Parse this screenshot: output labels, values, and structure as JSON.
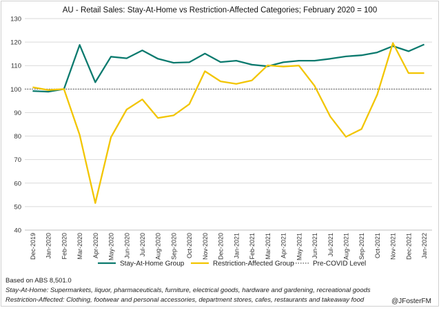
{
  "chart_data": {
    "type": "line",
    "title": "AU - Retail Sales: Stay-At-Home vs Restriction-Affected Categories; February 2020 = 100",
    "categories": [
      "Dec-2019",
      "Jan-2020",
      "Feb-2020",
      "Mar-2020",
      "Apr-2020",
      "May-2020",
      "Jun-2020",
      "Jul-2020",
      "Aug-2020",
      "Sep-2020",
      "Oct-2020",
      "Nov-2020",
      "Dec-2020",
      "Jan-2021",
      "Feb-2021",
      "Mar-2021",
      "Apr-2021",
      "May-2021",
      "Jun-2021",
      "Jul-2021",
      "Aug-2021",
      "Sep-2021",
      "Oct-2021",
      "Nov-2021",
      "Dec-2021",
      "Jan-2022"
    ],
    "series": [
      {
        "name": "Stay-At-Home Group",
        "color": "#0b7a6e",
        "values": [
          99.2,
          98.9,
          100.0,
          118.8,
          102.9,
          113.8,
          113.1,
          116.5,
          112.9,
          111.2,
          111.4,
          115.1,
          111.5,
          112.1,
          110.4,
          109.7,
          111.4,
          112.1,
          112.1,
          112.9,
          113.9,
          114.4,
          115.6,
          118.3,
          116.1,
          119.0
        ]
      },
      {
        "name": "Restriction-Affected Group",
        "color": "#f2c500",
        "values": [
          100.8,
          99.6,
          100.0,
          80.5,
          51.5,
          79.5,
          91.3,
          95.6,
          87.7,
          88.8,
          93.6,
          107.6,
          103.3,
          102.2,
          103.7,
          110.1,
          109.6,
          110.0,
          101.4,
          88.3,
          79.7,
          83.0,
          97.6,
          119.6,
          106.8,
          106.8
        ]
      }
    ],
    "reference": {
      "name": "Pre-COVID Level",
      "value": 100,
      "style": "dotted",
      "color": "#555555"
    },
    "ylim": [
      40,
      130
    ],
    "yticks": [
      40,
      50,
      60,
      70,
      80,
      90,
      100,
      110,
      120,
      130
    ],
    "xlabel": "",
    "ylabel": "",
    "grid": true,
    "legend": "bottom"
  },
  "footer": {
    "source": "Based on ABS 8,501.0",
    "stay_label": "Stay-At-Home:",
    "stay_desc": " Supermarkets, liquor, pharmaceuticals, furniture, electrical goods, hardware and gardening, recreational goods",
    "restr_label": "Restriction-Affected:",
    "restr_desc": " Clothing, footwear and personal accessories, department stores, cafes, restaurants and takeaway food",
    "handle": "@JFosterFM"
  }
}
